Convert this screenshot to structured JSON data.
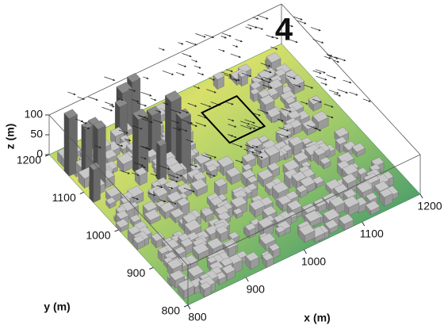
{
  "chart_data": {
    "type": "surface3d",
    "panel_label": "4",
    "xlabel": "x (m)",
    "ylabel": "y (m)",
    "zlabel": "z (m)",
    "xlim": [
      800,
      1200
    ],
    "xticks": [
      800,
      900,
      1000,
      1100,
      1200
    ],
    "ylim": [
      800,
      1200
    ],
    "yticks": [
      800,
      900,
      1000,
      1100,
      1200
    ],
    "zlim": [
      0,
      100
    ],
    "zticks": [
      0,
      50,
      100
    ]
  }
}
